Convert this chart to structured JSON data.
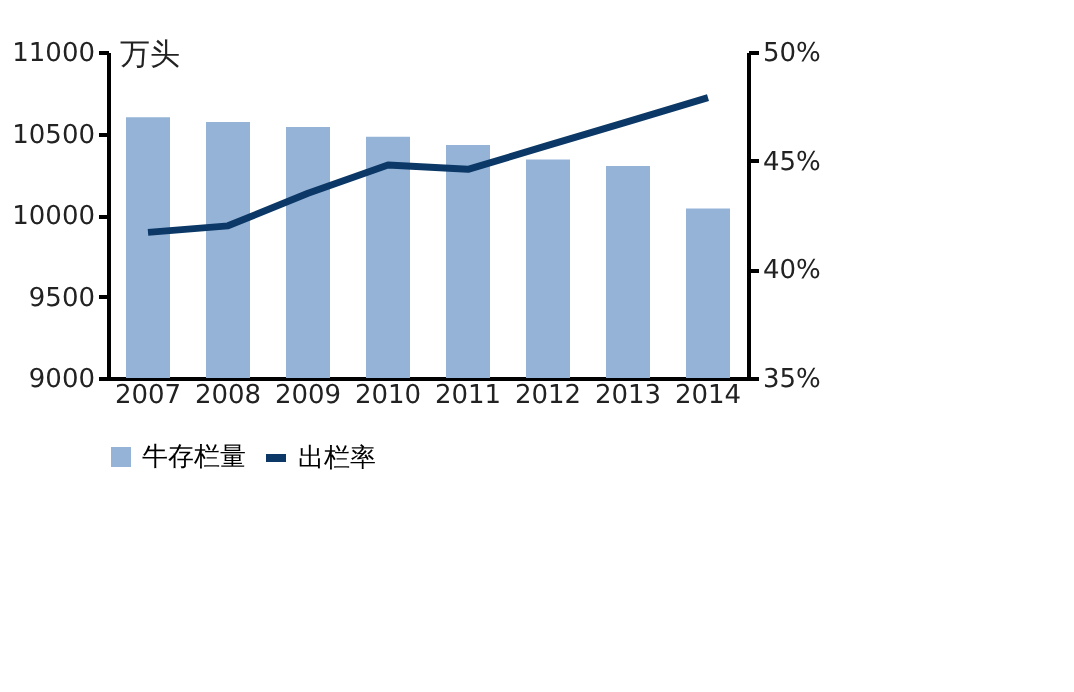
{
  "chart_data": {
    "type": "bar",
    "ylabel": "万头",
    "categories": [
      "2007",
      "2008",
      "2009",
      "2010",
      "2011",
      "2012",
      "2013",
      "2014"
    ],
    "series": [
      {
        "name": "牛存栏量",
        "color": "#95b3d7",
        "values": [
          10600,
          10570,
          10540,
          10480,
          10430,
          10340,
          10300,
          10040
        ]
      },
      {
        "name": "出栏率",
        "type": "line",
        "axis": "y2",
        "color": "#0b3866",
        "values": [
          41.7,
          42.0,
          43.5,
          44.8,
          44.6,
          45.7,
          46.8,
          47.9
        ]
      }
    ],
    "ylim": [
      9000,
      11000
    ],
    "yticks": [
      9000,
      9500,
      10000,
      10500,
      11000
    ],
    "y2lim": [
      35,
      50
    ],
    "y2ticks": [
      {
        "value": 35,
        "label": "35%"
      },
      {
        "value": 40,
        "label": "40%"
      },
      {
        "value": 45,
        "label": "45%"
      },
      {
        "value": 50,
        "label": "50%"
      }
    ],
    "grid": false,
    "legend": "bottom"
  }
}
